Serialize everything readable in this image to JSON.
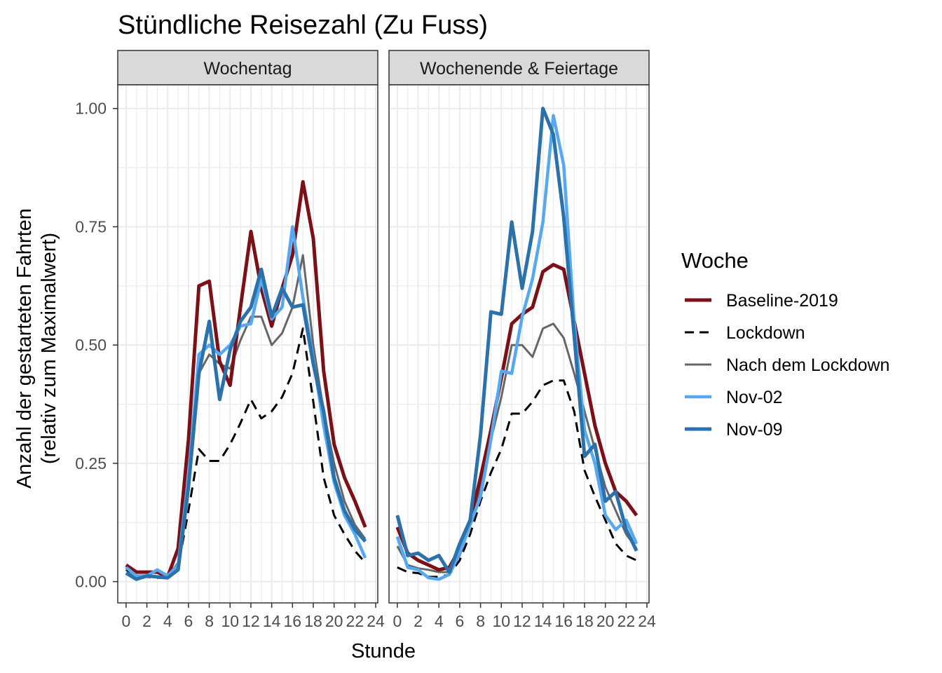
{
  "chart_data": {
    "type": "line",
    "title": "Stündliche Reisezahl (Zu Fuss)",
    "xlabel": "Stunde",
    "ylabel_line1": "Anzahl der gestarteten Fahrten",
    "ylabel_line2": "(relativ zum Maximalwert)",
    "xlim": [
      -0.8,
      24.2
    ],
    "ylim": [
      -0.045,
      1.05
    ],
    "x_ticks": [
      0,
      2,
      4,
      6,
      8,
      10,
      12,
      14,
      16,
      18,
      20,
      22,
      24
    ],
    "x_tick_labels": [
      "0",
      "2",
      "4",
      "6",
      "8",
      "10",
      "12",
      "14",
      "16",
      "18",
      "20",
      "22",
      "24"
    ],
    "y_ticks": [
      0,
      0.25,
      0.5,
      0.75,
      1.0
    ],
    "y_tick_labels": [
      "0.00",
      "0.25",
      "0.50",
      "0.75",
      "1.00"
    ],
    "grid": true,
    "legend": {
      "title": "Woche",
      "position": "right",
      "entries": [
        "Baseline-2019",
        "Lockdown",
        "Nach dem Lockdown",
        "Nov-02",
        "Nov-09"
      ]
    },
    "series_styles": [
      {
        "color": "#7b1116",
        "width": 5,
        "dash": ""
      },
      {
        "color": "#000000",
        "width": 3,
        "dash": "14,9"
      },
      {
        "color": "#666666",
        "width": 3,
        "dash": ""
      },
      {
        "color": "#56a8f0",
        "width": 4.5,
        "dash": ""
      },
      {
        "color": "#2b71aa",
        "width": 5,
        "dash": ""
      }
    ],
    "panels": [
      {
        "label": "Wochentag",
        "series": [
          {
            "name": "Baseline-2019",
            "x": [
              0,
              1,
              2,
              3,
              4,
              5,
              6,
              7,
              8,
              9,
              10,
              11,
              12,
              13,
              14,
              15,
              16,
              17,
              18,
              19,
              20,
              21,
              22,
              23
            ],
            "values": [
              0.035,
              0.02,
              0.02,
              0.02,
              0.01,
              0.07,
              0.3,
              0.625,
              0.635,
              0.465,
              0.415,
              0.58,
              0.74,
              0.62,
              0.54,
              0.62,
              0.69,
              0.845,
              0.725,
              0.445,
              0.29,
              0.22,
              0.17,
              0.115
            ]
          },
          {
            "name": "Lockdown",
            "x": [
              0,
              1,
              2,
              3,
              4,
              5,
              6,
              7,
              8,
              9,
              10,
              11,
              12,
              13,
              14,
              15,
              16,
              17,
              18,
              19,
              20,
              21,
              22,
              23
            ],
            "values": [
              0.025,
              0.015,
              0.01,
              0.008,
              0.008,
              0.03,
              0.15,
              0.28,
              0.255,
              0.255,
              0.29,
              0.335,
              0.385,
              0.345,
              0.36,
              0.39,
              0.44,
              0.535,
              0.38,
              0.22,
              0.14,
              0.1,
              0.065,
              0.04
            ]
          },
          {
            "name": "Nach dem Lockdown",
            "x": [
              0,
              1,
              2,
              3,
              4,
              5,
              6,
              7,
              8,
              9,
              10,
              11,
              12,
              13,
              14,
              15,
              16,
              17,
              18,
              19,
              20,
              21,
              22,
              23
            ],
            "values": [
              0.025,
              0.01,
              0.012,
              0.01,
              0.01,
              0.04,
              0.2,
              0.44,
              0.48,
              0.46,
              0.45,
              0.51,
              0.56,
              0.56,
              0.5,
              0.525,
              0.58,
              0.69,
              0.5,
              0.36,
              0.25,
              0.17,
              0.12,
              0.09
            ]
          },
          {
            "name": "Nov-02",
            "x": [
              0,
              1,
              2,
              3,
              4,
              5,
              6,
              7,
              8,
              9,
              10,
              11,
              12,
              13,
              14,
              15,
              16,
              17,
              18,
              19,
              20,
              21,
              22,
              23
            ],
            "values": [
              0.03,
              0.012,
              0.012,
              0.025,
              0.012,
              0.035,
              0.22,
              0.48,
              0.5,
              0.48,
              0.5,
              0.54,
              0.545,
              0.64,
              0.555,
              0.58,
              0.75,
              0.6,
              0.47,
              0.33,
              0.21,
              0.14,
              0.1,
              0.05
            ]
          },
          {
            "name": "Nov-09",
            "x": [
              0,
              1,
              2,
              3,
              4,
              5,
              6,
              7,
              8,
              9,
              10,
              11,
              12,
              13,
              14,
              15,
              16,
              17,
              18,
              19,
              20,
              21,
              22,
              23
            ],
            "values": [
              0.018,
              0.005,
              0.012,
              0.01,
              0.008,
              0.025,
              0.2,
              0.44,
              0.55,
              0.385,
              0.49,
              0.55,
              0.58,
              0.66,
              0.56,
              0.62,
              0.58,
              0.585,
              0.46,
              0.36,
              0.22,
              0.15,
              0.11,
              0.085
            ]
          }
        ]
      },
      {
        "label": "Wochenende & Feiertage",
        "series": [
          {
            "name": "Baseline-2019",
            "x": [
              0,
              1,
              2,
              3,
              4,
              5,
              6,
              7,
              8,
              9,
              10,
              11,
              12,
              13,
              14,
              15,
              16,
              17,
              18,
              19,
              20,
              21,
              22,
              23
            ],
            "values": [
              0.115,
              0.06,
              0.045,
              0.035,
              0.025,
              0.03,
              0.07,
              0.13,
              0.22,
              0.32,
              0.43,
              0.545,
              0.565,
              0.58,
              0.655,
              0.67,
              0.66,
              0.55,
              0.44,
              0.33,
              0.25,
              0.19,
              0.17,
              0.14
            ]
          },
          {
            "name": "Lockdown",
            "x": [
              0,
              1,
              2,
              3,
              4,
              5,
              6,
              7,
              8,
              9,
              10,
              11,
              12,
              13,
              14,
              15,
              16,
              17,
              18,
              19,
              20,
              21,
              22,
              23
            ],
            "values": [
              0.03,
              0.02,
              0.018,
              0.01,
              0.01,
              0.015,
              0.045,
              0.1,
              0.17,
              0.23,
              0.28,
              0.355,
              0.355,
              0.38,
              0.415,
              0.425,
              0.425,
              0.36,
              0.235,
              0.18,
              0.13,
              0.08,
              0.055,
              0.045
            ]
          },
          {
            "name": "Nach dem Lockdown",
            "x": [
              0,
              1,
              2,
              3,
              4,
              5,
              6,
              7,
              8,
              9,
              10,
              11,
              12,
              13,
              14,
              15,
              16,
              17,
              18,
              19,
              20,
              21,
              22,
              23
            ],
            "values": [
              0.075,
              0.035,
              0.028,
              0.025,
              0.02,
              0.02,
              0.055,
              0.12,
              0.2,
              0.3,
              0.39,
              0.5,
              0.5,
              0.475,
              0.535,
              0.545,
              0.515,
              0.44,
              0.36,
              0.28,
              0.2,
              0.15,
              0.1,
              0.07
            ]
          },
          {
            "name": "Nov-02",
            "x": [
              0,
              1,
              2,
              3,
              4,
              5,
              6,
              7,
              8,
              9,
              10,
              11,
              12,
              13,
              14,
              15,
              16,
              17,
              18,
              19,
              20,
              21,
              22,
              23
            ],
            "values": [
              0.095,
              0.03,
              0.025,
              0.008,
              0.005,
              0.015,
              0.06,
              0.12,
              0.18,
              0.3,
              0.445,
              0.44,
              0.56,
              0.64,
              0.76,
              0.985,
              0.88,
              0.55,
              0.32,
              0.25,
              0.14,
              0.11,
              0.13,
              0.08
            ]
          },
          {
            "name": "Nov-09",
            "x": [
              0,
              1,
              2,
              3,
              4,
              5,
              6,
              7,
              8,
              9,
              10,
              11,
              12,
              13,
              14,
              15,
              16,
              17,
              18,
              19,
              20,
              21,
              22,
              23
            ],
            "values": [
              0.14,
              0.055,
              0.06,
              0.045,
              0.055,
              0.02,
              0.08,
              0.13,
              0.31,
              0.57,
              0.565,
              0.76,
              0.62,
              0.74,
              1.0,
              0.945,
              0.77,
              0.52,
              0.265,
              0.29,
              0.17,
              0.19,
              0.11,
              0.065
            ]
          }
        ]
      }
    ]
  }
}
